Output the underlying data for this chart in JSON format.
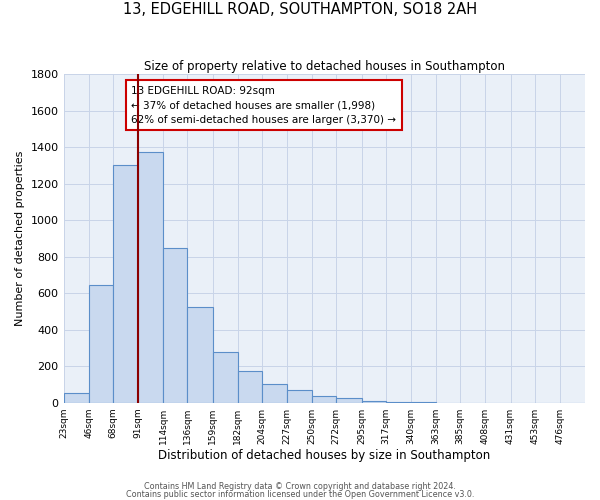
{
  "title": "13, EDGEHILL ROAD, SOUTHAMPTON, SO18 2AH",
  "subtitle": "Size of property relative to detached houses in Southampton",
  "xlabel": "Distribution of detached houses by size in Southampton",
  "ylabel": "Number of detached properties",
  "bar_labels": [
    "23sqm",
    "46sqm",
    "68sqm",
    "91sqm",
    "114sqm",
    "136sqm",
    "159sqm",
    "182sqm",
    "204sqm",
    "227sqm",
    "250sqm",
    "272sqm",
    "295sqm",
    "317sqm",
    "340sqm",
    "363sqm",
    "385sqm",
    "408sqm",
    "431sqm",
    "453sqm",
    "476sqm"
  ],
  "bar_values": [
    55,
    645,
    1305,
    1375,
    850,
    525,
    280,
    175,
    105,
    68,
    35,
    25,
    10,
    5,
    2,
    1,
    0,
    0,
    0,
    0,
    0
  ],
  "bin_edges": [
    23,
    46,
    68,
    91,
    114,
    136,
    159,
    182,
    204,
    227,
    250,
    272,
    295,
    317,
    340,
    363,
    385,
    408,
    431,
    453,
    476,
    499
  ],
  "bar_face_color": "#c9d9ef",
  "bar_edge_color": "#5b8ec9",
  "vline_x": 91,
  "vline_color": "#8b0000",
  "ann_line1": "13 EDGEHILL ROAD: 92sqm",
  "ann_line2": "← 37% of detached houses are smaller (1,998)",
  "ann_line3": "62% of semi-detached houses are larger (3,370) →",
  "ylim": [
    0,
    1800
  ],
  "yticks": [
    0,
    200,
    400,
    600,
    800,
    1000,
    1200,
    1400,
    1600,
    1800
  ],
  "grid_color": "#c8d4e8",
  "background_color": "#eaf0f8",
  "footer_line1": "Contains HM Land Registry data © Crown copyright and database right 2024.",
  "footer_line2": "Contains public sector information licensed under the Open Government Licence v3.0."
}
